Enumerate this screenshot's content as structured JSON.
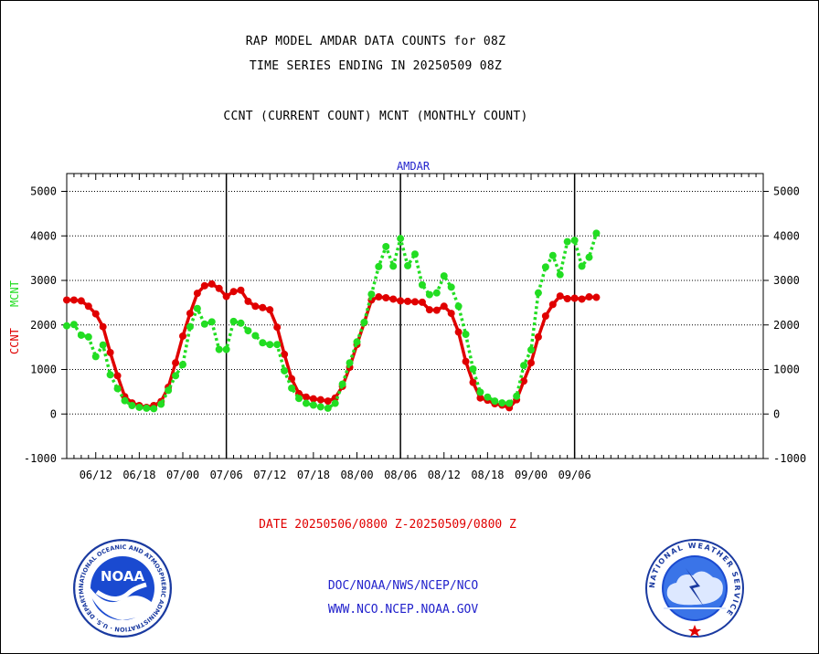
{
  "header": {
    "title_line1": "RAP MODEL AMDAR DATA COUNTS for 08Z",
    "title_line2": "TIME SERIES ENDING IN 20250509 08Z",
    "title_line3": "CCNT (CURRENT COUNT) MCNT (MONTHLY COUNT)"
  },
  "footer": {
    "date_range": "DATE 20250506/0800 Z-20250509/0800 Z",
    "org_path": "DOC/NOAA/NWS/NCEP/NCO",
    "website": "WWW.NCO.NCEP.NOAA.GOV"
  },
  "logos": {
    "noaa_text": "NOAA",
    "noaa_ring_text": "NATIONAL OCEANIC AND ATMOSPHERIC ADMINISTRATION · U.S. DEPARTMENT OF COMMERCE",
    "nws_ring_text": "NATIONAL WEATHER SERVICE"
  },
  "colors": {
    "ccnt": "#e00000",
    "mcnt": "#22dd22",
    "panel_label": "#2222cc",
    "axis": "#000000"
  },
  "chart_data": {
    "type": "line",
    "title": "AMDAR",
    "ylabel_left": [
      "CCNT",
      "MCNT"
    ],
    "ylim": [
      -1000,
      5400
    ],
    "yticks": [
      -1000,
      0,
      1000,
      2000,
      3000,
      4000,
      5000
    ],
    "xlim": [
      0,
      96
    ],
    "x_tick_labels": [
      "06/12",
      "06/18",
      "07/00",
      "07/06",
      "07/12",
      "07/18",
      "08/00",
      "08/06",
      "08/12",
      "08/18",
      "09/00",
      "09/06"
    ],
    "x_tick_positions": [
      4,
      10,
      16,
      22,
      28,
      34,
      40,
      46,
      52,
      58,
      64,
      70
    ],
    "day_boundaries": [
      22,
      46,
      70
    ],
    "grid": "horizontal dotted",
    "series": [
      {
        "name": "CCNT",
        "color": "#e00000",
        "style": "solid",
        "values": [
          2560,
          2560,
          2540,
          2420,
          2250,
          1960,
          1380,
          860,
          390,
          250,
          190,
          150,
          190,
          280,
          600,
          1150,
          1750,
          2260,
          2710,
          2880,
          2920,
          2820,
          2640,
          2750,
          2780,
          2530,
          2420,
          2390,
          2340,
          1950,
          1340,
          790,
          460,
          380,
          340,
          320,
          290,
          360,
          620,
          1050,
          1560,
          2050,
          2560,
          2630,
          2610,
          2580,
          2540,
          2530,
          2520,
          2510,
          2340,
          2330,
          2420,
          2260,
          1840,
          1180,
          710,
          360,
          310,
          230,
          200,
          140,
          320,
          740,
          1150,
          1730,
          2200,
          2460,
          2650,
          2590,
          2600,
          2580,
          2630,
          2620
        ]
      },
      {
        "name": "MCNT",
        "color": "#22dd22",
        "style": "dotted",
        "values": [
          1980,
          2010,
          1770,
          1730,
          1290,
          1550,
          880,
          570,
          300,
          190,
          150,
          130,
          120,
          220,
          530,
          860,
          1110,
          1960,
          2370,
          2020,
          2070,
          1450,
          1450,
          2080,
          2040,
          1870,
          1760,
          1600,
          1560,
          1560,
          970,
          580,
          350,
          240,
          200,
          160,
          130,
          240,
          670,
          1150,
          1620,
          2060,
          2690,
          3310,
          3760,
          3320,
          3940,
          3330,
          3590,
          2900,
          2680,
          2720,
          3100,
          2850,
          2420,
          1790,
          1010,
          490,
          380,
          290,
          250,
          240,
          400,
          1090,
          1440,
          2720,
          3300,
          3560,
          3130,
          3870,
          3900,
          3320,
          3520,
          4060
        ]
      }
    ]
  }
}
